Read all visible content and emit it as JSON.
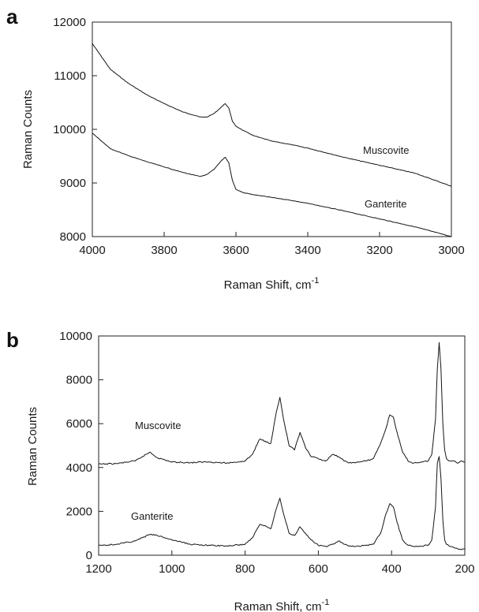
{
  "chart_data": [
    {
      "panel": "a",
      "type": "line",
      "xlabel": "Raman Shift, cm",
      "xlabel_sup": "-1",
      "ylabel": "Raman Counts",
      "xlim": [
        4000,
        3000
      ],
      "ylim": [
        8000,
        12000
      ],
      "xticks": [
        "4000",
        "3800",
        "3600",
        "3400",
        "3200",
        "3000"
      ],
      "yticks": [
        "8000",
        "9000",
        "10000",
        "11000",
        "12000"
      ],
      "annotations": [
        "Muscovite",
        "Ganterite"
      ],
      "series": [
        {
          "name": "Muscovite",
          "x": [
            4000,
            3950,
            3900,
            3850,
            3800,
            3750,
            3700,
            3680,
            3660,
            3640,
            3630,
            3620,
            3610,
            3600,
            3580,
            3550,
            3500,
            3450,
            3400,
            3300,
            3200,
            3100,
            3000
          ],
          "y": [
            11600,
            11120,
            10860,
            10650,
            10480,
            10330,
            10230,
            10230,
            10300,
            10420,
            10480,
            10400,
            10150,
            10060,
            9980,
            9880,
            9780,
            9720,
            9650,
            9480,
            9330,
            9180,
            8940
          ]
        },
        {
          "name": "Ganterite",
          "x": [
            4000,
            3950,
            3900,
            3850,
            3800,
            3750,
            3700,
            3680,
            3660,
            3640,
            3630,
            3620,
            3610,
            3600,
            3580,
            3550,
            3500,
            3450,
            3400,
            3300,
            3200,
            3100,
            3000
          ],
          "y": [
            9930,
            9640,
            9510,
            9400,
            9300,
            9200,
            9120,
            9160,
            9260,
            9420,
            9480,
            9380,
            9050,
            8880,
            8820,
            8780,
            8730,
            8680,
            8620,
            8480,
            8330,
            8180,
            8000
          ]
        }
      ]
    },
    {
      "panel": "b",
      "type": "line",
      "xlabel": "Raman Shift, cm",
      "xlabel_sup": "-1",
      "ylabel": "Raman Counts",
      "xlim": [
        1200,
        200
      ],
      "ylim": [
        0,
        10000
      ],
      "xticks": [
        "1200",
        "1000",
        "800",
        "600",
        "400",
        "200"
      ],
      "yticks": [
        "0",
        "2000",
        "4000",
        "6000",
        "8000",
        "10000"
      ],
      "annotations": [
        "Muscovite",
        "Ganterite"
      ],
      "series": [
        {
          "name": "Muscovite",
          "x": [
            1200,
            1150,
            1100,
            1080,
            1060,
            1040,
            1000,
            950,
            900,
            850,
            800,
            780,
            760,
            745,
            730,
            715,
            705,
            695,
            680,
            665,
            650,
            635,
            620,
            600,
            580,
            560,
            545,
            530,
            510,
            490,
            470,
            450,
            430,
            415,
            405,
            395,
            385,
            370,
            355,
            340,
            320,
            300,
            290,
            280,
            275,
            270,
            265,
            260,
            255,
            250,
            240,
            230,
            220,
            210,
            200
          ],
          "y": [
            4150,
            4180,
            4300,
            4500,
            4700,
            4450,
            4250,
            4220,
            4260,
            4200,
            4300,
            4600,
            5300,
            5200,
            5100,
            6500,
            7200,
            6200,
            5000,
            4800,
            5600,
            4900,
            4500,
            4400,
            4300,
            4600,
            4500,
            4300,
            4200,
            4250,
            4300,
            4400,
            5100,
            5800,
            6400,
            6300,
            5600,
            4700,
            4300,
            4200,
            4250,
            4300,
            4600,
            6200,
            8500,
            9700,
            8500,
            6000,
            4800,
            4400,
            4300,
            4300,
            4200,
            4300,
            4250
          ]
        },
        {
          "name": "Ganterite",
          "x": [
            1200,
            1150,
            1100,
            1080,
            1060,
            1040,
            1000,
            950,
            900,
            850,
            800,
            780,
            760,
            745,
            730,
            715,
            705,
            695,
            680,
            665,
            650,
            635,
            620,
            600,
            580,
            560,
            545,
            530,
            510,
            490,
            470,
            450,
            430,
            415,
            405,
            395,
            385,
            370,
            355,
            340,
            320,
            300,
            290,
            280,
            275,
            270,
            265,
            260,
            255,
            250,
            240,
            230,
            220,
            210,
            200
          ],
          "y": [
            450,
            500,
            650,
            800,
            950,
            900,
            700,
            500,
            450,
            420,
            500,
            800,
            1400,
            1350,
            1200,
            2100,
            2600,
            1900,
            1000,
            900,
            1300,
            1000,
            700,
            450,
            400,
            500,
            650,
            500,
            400,
            420,
            450,
            500,
            1000,
            1900,
            2350,
            2200,
            1500,
            700,
            450,
            400,
            420,
            450,
            700,
            2200,
            4200,
            4500,
            3500,
            1600,
            700,
            500,
            400,
            350,
            300,
            250,
            300
          ]
        }
      ]
    }
  ]
}
